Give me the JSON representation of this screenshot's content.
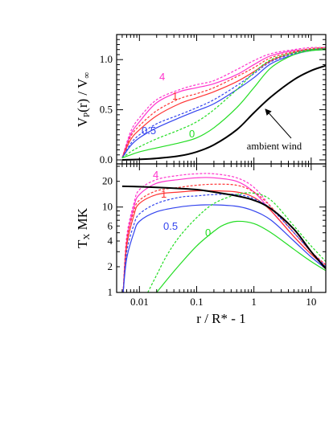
{
  "colors": {
    "c4": "#ff33cc",
    "c1": "#ff3333",
    "c05": "#3344ee",
    "c0": "#22dd22",
    "ambient": "#000000"
  },
  "chart_data": [
    {
      "type": "line",
      "panel": "top",
      "ylabel": "V_P(r) / V_∞",
      "xscale": "log",
      "xlim": [
        0.004,
        18
      ],
      "ylim": [
        -0.04,
        1.25
      ],
      "yticks": [
        "0.0",
        "0.5",
        "1.0"
      ],
      "annotation": "ambient wind",
      "curve_labels": [
        "4",
        "1",
        "0.5",
        "0"
      ],
      "series": [
        {
          "label": "4",
          "color_key": "c4",
          "style": "solid",
          "x": [
            0.005,
            0.007,
            0.01,
            0.02,
            0.05,
            0.1,
            0.2,
            0.5,
            1,
            2,
            5,
            10,
            18
          ],
          "y": [
            0.02,
            0.25,
            0.38,
            0.57,
            0.68,
            0.72,
            0.76,
            0.85,
            0.95,
            1.04,
            1.09,
            1.1,
            1.11
          ]
        },
        {
          "label": "4",
          "color_key": "c4",
          "style": "dashed",
          "x": [
            0.005,
            0.007,
            0.01,
            0.02,
            0.05,
            0.1,
            0.2,
            0.5,
            1,
            2,
            5,
            10,
            18
          ],
          "y": [
            0.02,
            0.28,
            0.42,
            0.6,
            0.7,
            0.75,
            0.79,
            0.9,
            0.99,
            1.06,
            1.1,
            1.12,
            1.12
          ]
        },
        {
          "label": "1",
          "color_key": "c1",
          "style": "solid",
          "x": [
            0.005,
            0.007,
            0.01,
            0.02,
            0.05,
            0.1,
            0.2,
            0.5,
            1,
            2,
            5,
            10,
            18
          ],
          "y": [
            0.02,
            0.2,
            0.3,
            0.44,
            0.56,
            0.62,
            0.68,
            0.78,
            0.88,
            0.99,
            1.07,
            1.1,
            1.11
          ]
        },
        {
          "label": "1",
          "color_key": "c1",
          "style": "dashed",
          "x": [
            0.005,
            0.007,
            0.01,
            0.02,
            0.05,
            0.1,
            0.2,
            0.5,
            1,
            2,
            5,
            10,
            18
          ],
          "y": [
            0.02,
            0.23,
            0.34,
            0.49,
            0.61,
            0.66,
            0.72,
            0.83,
            0.92,
            1.02,
            1.08,
            1.11,
            1.12
          ]
        },
        {
          "label": "0.5",
          "color_key": "c05",
          "style": "solid",
          "x": [
            0.005,
            0.007,
            0.01,
            0.02,
            0.05,
            0.1,
            0.2,
            0.5,
            1,
            2,
            5,
            10,
            18
          ],
          "y": [
            0.02,
            0.14,
            0.22,
            0.32,
            0.42,
            0.49,
            0.56,
            0.7,
            0.82,
            0.96,
            1.05,
            1.09,
            1.1
          ]
        },
        {
          "label": "0.5",
          "color_key": "c05",
          "style": "dashed",
          "x": [
            0.005,
            0.007,
            0.01,
            0.02,
            0.05,
            0.1,
            0.2,
            0.5,
            1,
            2,
            5,
            10,
            18
          ],
          "y": [
            0.02,
            0.16,
            0.25,
            0.36,
            0.45,
            0.52,
            0.6,
            0.74,
            0.86,
            0.98,
            1.06,
            1.1,
            1.11
          ]
        },
        {
          "label": "0",
          "color_key": "c0",
          "style": "solid",
          "x": [
            0.005,
            0.007,
            0.01,
            0.02,
            0.05,
            0.1,
            0.2,
            0.5,
            1,
            2,
            5,
            10,
            18
          ],
          "y": [
            0.02,
            0.05,
            0.08,
            0.12,
            0.17,
            0.22,
            0.32,
            0.52,
            0.72,
            0.92,
            1.05,
            1.09,
            1.1
          ]
        },
        {
          "label": "0",
          "color_key": "c0",
          "style": "dashed",
          "x": [
            0.005,
            0.007,
            0.01,
            0.02,
            0.05,
            0.1,
            0.2,
            0.5,
            1,
            2,
            5,
            10,
            18
          ],
          "y": [
            0.02,
            0.08,
            0.13,
            0.21,
            0.3,
            0.38,
            0.5,
            0.7,
            0.87,
            1.0,
            1.07,
            1.1,
            1.11
          ]
        },
        {
          "label": "ambient wind",
          "color_key": "ambient",
          "style": "solid",
          "x": [
            0.005,
            0.01,
            0.02,
            0.05,
            0.1,
            0.2,
            0.5,
            1,
            2,
            5,
            10,
            18
          ],
          "y": [
            0.0,
            0.005,
            0.015,
            0.04,
            0.08,
            0.15,
            0.3,
            0.47,
            0.63,
            0.8,
            0.89,
            0.94
          ]
        }
      ]
    },
    {
      "type": "line",
      "panel": "bottom",
      "ylabel": "T_X MK",
      "xlabel": "r / R* - 1",
      "xscale": "log",
      "yscale": "log",
      "xlim": [
        0.004,
        18
      ],
      "ylim": [
        1,
        32
      ],
      "xticks": [
        "0.01",
        "0.1",
        "1",
        "10"
      ],
      "yticks": [
        "1",
        "2",
        "4",
        "6",
        "10",
        "20"
      ],
      "curve_labels": [
        "4",
        "1",
        "0.5",
        "0"
      ],
      "series": [
        {
          "label": "4",
          "color_key": "c4",
          "style": "solid",
          "x": [
            0.0052,
            0.006,
            0.008,
            0.01,
            0.02,
            0.05,
            0.1,
            0.2,
            0.5,
            1,
            2,
            5,
            10,
            18
          ],
          "y": [
            1,
            4,
            10,
            14,
            19,
            21,
            22,
            22,
            20,
            15,
            9,
            4.5,
            2.8,
            2.0
          ]
        },
        {
          "label": "4",
          "color_key": "c4",
          "style": "dashed",
          "x": [
            0.0052,
            0.006,
            0.008,
            0.01,
            0.02,
            0.05,
            0.1,
            0.2,
            0.5,
            1,
            2,
            5,
            10,
            18
          ],
          "y": [
            1,
            4.5,
            11,
            16,
            21,
            23.5,
            24.5,
            24.5,
            22,
            17,
            10,
            5,
            3,
            2.1
          ]
        },
        {
          "label": "1",
          "color_key": "c1",
          "style": "solid",
          "x": [
            0.0052,
            0.006,
            0.008,
            0.01,
            0.02,
            0.05,
            0.1,
            0.2,
            0.5,
            1,
            2,
            5,
            10,
            18
          ],
          "y": [
            1,
            3.5,
            8,
            11,
            14,
            15,
            15.5,
            15.5,
            15,
            13,
            9,
            4.5,
            2.8,
            2.0
          ]
        },
        {
          "label": "1",
          "color_key": "c1",
          "style": "dashed",
          "x": [
            0.0052,
            0.006,
            0.008,
            0.01,
            0.02,
            0.05,
            0.1,
            0.2,
            0.5,
            1,
            2,
            5,
            10,
            18
          ],
          "y": [
            1,
            4,
            9,
            12,
            15.5,
            17,
            18,
            18.5,
            18,
            15,
            10,
            5,
            3,
            2.1
          ]
        },
        {
          "label": "0.5",
          "color_key": "c05",
          "style": "solid",
          "x": [
            0.0052,
            0.006,
            0.008,
            0.01,
            0.02,
            0.05,
            0.1,
            0.2,
            0.5,
            1,
            2,
            5,
            10,
            18
          ],
          "y": [
            1,
            2.5,
            5,
            6.8,
            8.8,
            10,
            10.5,
            10.6,
            10.2,
            9,
            7,
            4,
            2.6,
            1.9
          ]
        },
        {
          "label": "0.5",
          "color_key": "c05",
          "style": "dashed",
          "x": [
            0.0052,
            0.006,
            0.008,
            0.01,
            0.02,
            0.05,
            0.1,
            0.2,
            0.5,
            1,
            2,
            5,
            10,
            18
          ],
          "y": [
            1,
            3,
            6.2,
            8.3,
            11,
            13,
            13.5,
            14,
            14,
            12.5,
            9.5,
            5,
            3,
            2.0
          ]
        },
        {
          "label": "0",
          "color_key": "c0",
          "style": "solid",
          "x": [
            0.02,
            0.03,
            0.05,
            0.1,
            0.2,
            0.3,
            0.5,
            1,
            2,
            5,
            10,
            18
          ],
          "y": [
            1,
            1.4,
            2.1,
            3.5,
            5.2,
            6.2,
            6.8,
            6.4,
            5,
            3.2,
            2.3,
            1.8
          ]
        },
        {
          "label": "0",
          "color_key": "c0",
          "style": "dashed",
          "x": [
            0.014,
            0.02,
            0.03,
            0.05,
            0.1,
            0.2,
            0.5,
            1,
            2,
            5,
            10,
            18
          ],
          "y": [
            1,
            1.6,
            2.7,
            4.5,
            7.5,
            11,
            14,
            14.5,
            12,
            6,
            3.5,
            2.3
          ]
        },
        {
          "label": "ambient wind",
          "color_key": "ambient",
          "style": "solid",
          "x": [
            0.005,
            0.01,
            0.02,
            0.05,
            0.1,
            0.2,
            0.5,
            1,
            2,
            5,
            10,
            18
          ],
          "y": [
            17.5,
            17.3,
            17.0,
            16.5,
            16.0,
            15.0,
            13.5,
            12.0,
            9.5,
            5.5,
            3.0,
            1.9
          ]
        }
      ]
    }
  ]
}
